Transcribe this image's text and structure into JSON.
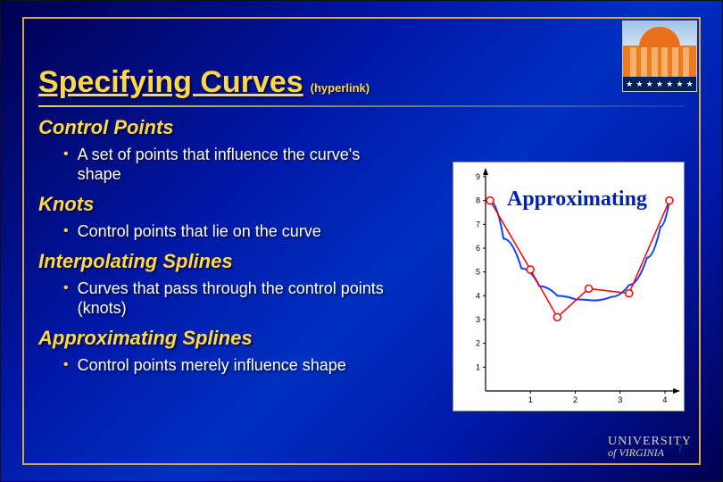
{
  "slide": {
    "title": "Specifying Curves",
    "title_note": "(hyperlink)",
    "sections": [
      {
        "heading": "Control Points",
        "bullet": "A set of points that influence the curve's shape"
      },
      {
        "heading": "Knots",
        "bullet": "Control points that lie on the curve"
      },
      {
        "heading": "Interpolating Splines",
        "bullet": "Curves that pass through the control points (knots)"
      },
      {
        "heading": "Approximating Splines",
        "bullet": "Control points merely influence shape"
      }
    ],
    "page_number": "7",
    "footer": {
      "line1": "UNIVERSITY",
      "line2": "of VIRGINIA"
    }
  },
  "chart": {
    "type": "line+scatter",
    "label": "Approximating",
    "label_color": "#0020b0",
    "label_fontsize": 24,
    "background_color": "#ffffff",
    "axis_color": "#000000",
    "xlim": [
      0,
      4.3
    ],
    "ylim": [
      0,
      9.3
    ],
    "xtick_step": 1,
    "ytick_step": 1,
    "tick_fontsize": 9,
    "control_points": [
      {
        "x": 0.1,
        "y": 8.0
      },
      {
        "x": 1.0,
        "y": 5.1
      },
      {
        "x": 1.6,
        "y": 3.1
      },
      {
        "x": 2.3,
        "y": 4.3
      },
      {
        "x": 3.2,
        "y": 4.1
      },
      {
        "x": 4.1,
        "y": 8.0
      }
    ],
    "polyline_color": "#ff0000",
    "polyline_width": 1.5,
    "marker_color": "#ff0000",
    "marker_fill": "#ffffff",
    "marker_radius": 4,
    "curve_color": "#1040ff",
    "curve_width": 2,
    "curve_samples": [
      {
        "x": 0.1,
        "y": 8.0
      },
      {
        "x": 0.4,
        "y": 6.4
      },
      {
        "x": 0.8,
        "y": 5.15
      },
      {
        "x": 1.2,
        "y": 4.4
      },
      {
        "x": 1.6,
        "y": 4.0
      },
      {
        "x": 2.0,
        "y": 3.85
      },
      {
        "x": 2.4,
        "y": 3.8
      },
      {
        "x": 2.8,
        "y": 3.95
      },
      {
        "x": 3.2,
        "y": 4.45
      },
      {
        "x": 3.6,
        "y": 5.6
      },
      {
        "x": 3.9,
        "y": 6.9
      },
      {
        "x": 4.1,
        "y": 8.0
      }
    ]
  },
  "colors": {
    "heading": "#ffd84a",
    "body_text": "#ffffff",
    "bg_gradient_from": "#000050",
    "bg_gradient_mid": "#0020b8",
    "accent_border": "#d4a84a"
  }
}
